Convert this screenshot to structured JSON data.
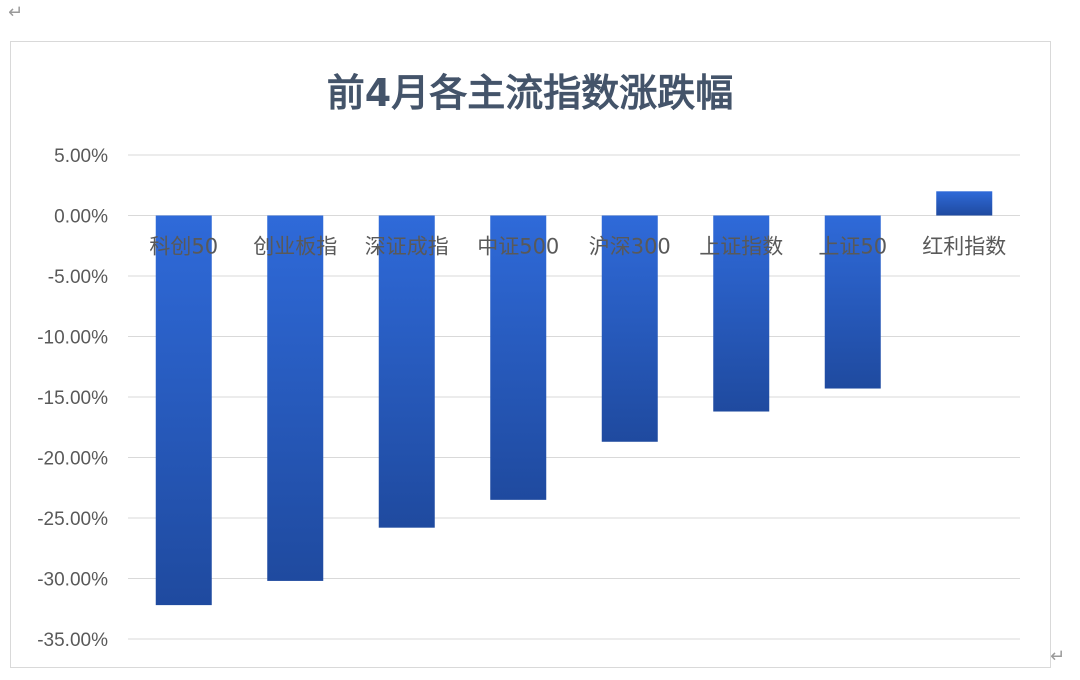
{
  "chart_data": {
    "type": "bar",
    "title": "前4月各主流指数涨跌幅",
    "xlabel": "",
    "ylabel": "",
    "categories": [
      "科创50",
      "创业板指",
      "深证成指",
      "中证500",
      "沪深300",
      "上证指数",
      "上证50",
      "红利指数"
    ],
    "values": [
      -32.2,
      -30.2,
      -25.8,
      -23.5,
      -18.7,
      -16.2,
      -14.3,
      2.0
    ],
    "ylim": [
      -35,
      5
    ],
    "yticks": [
      5,
      0,
      -5,
      -10,
      -15,
      -20,
      -25,
      -30,
      -35
    ],
    "ytick_labels": [
      "5.00%",
      "0.00%",
      "-5.00%",
      "-10.00%",
      "-15.00%",
      "-20.00%",
      "-25.00%",
      "-30.00%",
      "-35.00%"
    ],
    "grid": true,
    "legend": "none",
    "colors": {
      "bar_top": "#2f6ad9",
      "bar_bottom": "#1f4a9f",
      "grid": "#d9d9d9",
      "title": "#44546a",
      "text": "#595959"
    }
  },
  "page": {
    "paragraph_mark": "↵"
  }
}
